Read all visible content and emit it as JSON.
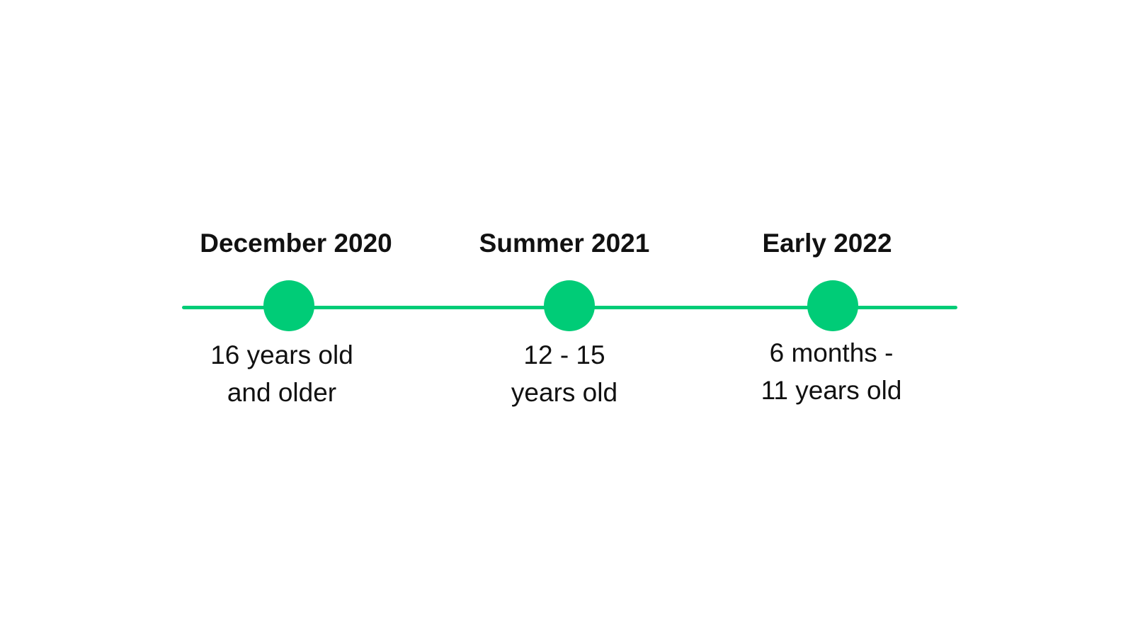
{
  "timeline": {
    "accent_color": "#00cc77",
    "milestones": [
      {
        "title": "December 2020",
        "description": [
          "16 years old",
          "and older"
        ]
      },
      {
        "title": "Summer 2021",
        "description": [
          "12 - 15",
          "years old"
        ]
      },
      {
        "title": "Early 2022",
        "description": [
          "6 months -",
          "11 years old"
        ]
      }
    ]
  }
}
